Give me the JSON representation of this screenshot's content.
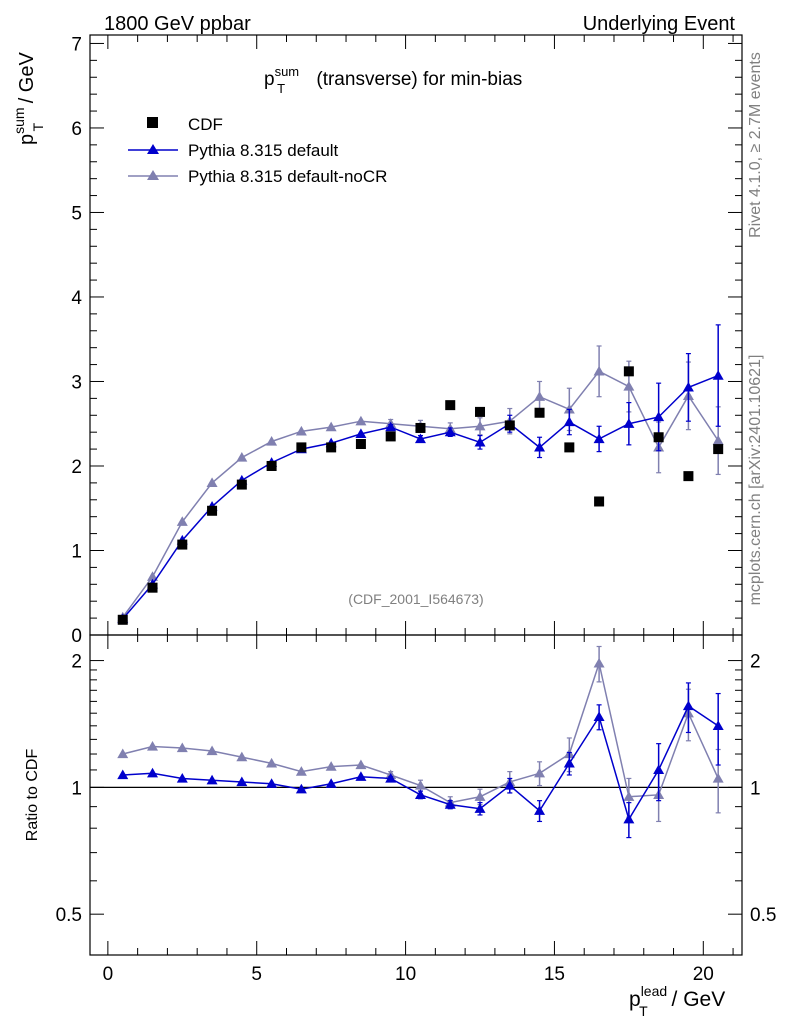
{
  "header": {
    "left": "1800 GeV ppbar",
    "right": "Underlying Event"
  },
  "side_texts": {
    "rivet": "Rivet 4.1.0, ≥ 2.7M events",
    "mcplots": "mcplots.cern.ch [arXiv:2401.10621]"
  },
  "chart_data": [
    {
      "type": "scatter",
      "panel": "main",
      "title": "p_T^sum (transverse) for min-bias",
      "title_parts": {
        "base": "p",
        "sub": "T",
        "sup": "sum",
        "rest": " (transverse) for min-bias"
      },
      "ylabel_parts": {
        "base": "p",
        "sub": "T",
        "sup": "sum",
        "rest": " / GeV"
      },
      "ylim": [
        0,
        7.1
      ],
      "xlim": [
        -0.6,
        21.3
      ],
      "yticks": [
        0,
        1,
        2,
        3,
        4,
        5,
        6,
        7
      ],
      "ytick_labels": [
        "0",
        "1",
        "2",
        "3",
        "4",
        "5",
        "6",
        "7"
      ],
      "watermark": "(CDF_2001_I564673)",
      "legend": [
        "CDF",
        "Pythia 8.315 default",
        "Pythia 8.315 default-noCR"
      ],
      "x": [
        0.5,
        1.5,
        2.5,
        3.5,
        4.5,
        5.5,
        6.5,
        7.5,
        8.5,
        9.5,
        10.5,
        11.5,
        12.5,
        13.5,
        14.5,
        15.5,
        16.5,
        17.5,
        18.5,
        19.5,
        20.5
      ],
      "series": [
        {
          "name": "CDF",
          "color": "#000000",
          "marker": "square",
          "values": [
            0.18,
            0.56,
            1.07,
            1.47,
            1.78,
            2.0,
            2.22,
            2.22,
            2.26,
            2.35,
            2.45,
            2.72,
            2.64,
            2.48,
            2.63,
            2.22,
            1.58,
            3.12,
            2.34,
            1.88,
            2.2
          ]
        },
        {
          "name": "Pythia 8.315 default",
          "color": "#0000cc",
          "marker": "triangle",
          "values": [
            0.19,
            0.6,
            1.12,
            1.52,
            1.83,
            2.04,
            2.2,
            2.27,
            2.38,
            2.46,
            2.32,
            2.4,
            2.28,
            2.5,
            2.22,
            2.52,
            2.32,
            2.5,
            2.58,
            2.93,
            3.07
          ],
          "errors": [
            0.0,
            0.0,
            0.0,
            0.0,
            0.0,
            0.0,
            0.0,
            0.0,
            0.0,
            0.03,
            0.04,
            0.05,
            0.08,
            0.1,
            0.12,
            0.15,
            0.15,
            0.25,
            0.4,
            0.4,
            0.6
          ]
        },
        {
          "name": "Pythia 8.315 default-noCR",
          "color": "#8080b0",
          "marker": "triangle",
          "values": [
            0.21,
            0.69,
            1.34,
            1.8,
            2.1,
            2.29,
            2.41,
            2.46,
            2.53,
            2.5,
            2.47,
            2.44,
            2.47,
            2.53,
            2.82,
            2.67,
            3.12,
            2.94,
            2.22,
            2.83,
            2.3
          ],
          "errors": [
            0.0,
            0.0,
            0.0,
            0.0,
            0.0,
            0.0,
            0.0,
            0.0,
            0.0,
            0.05,
            0.07,
            0.07,
            0.1,
            0.15,
            0.18,
            0.25,
            0.3,
            0.3,
            0.3,
            0.4,
            0.4
          ]
        }
      ]
    },
    {
      "type": "scatter",
      "panel": "ratio",
      "ylabel": "Ratio to CDF",
      "yscale": "log",
      "ylim": [
        0.4,
        2.3
      ],
      "xlim": [
        -0.6,
        21.3
      ],
      "yticks": [
        0.5,
        1,
        2
      ],
      "ytick_labels": [
        "0.5",
        "1",
        "2"
      ],
      "xticks": [
        0,
        5,
        10,
        15,
        20
      ],
      "xtick_labels": [
        "0",
        "5",
        "10",
        "15",
        "20"
      ],
      "xlabel_parts": {
        "base": "p",
        "sub": "T",
        "sup": "lead",
        "rest": " / GeV"
      },
      "reference_line": 1,
      "x": [
        0.5,
        1.5,
        2.5,
        3.5,
        4.5,
        5.5,
        6.5,
        7.5,
        8.5,
        9.5,
        10.5,
        11.5,
        12.5,
        13.5,
        14.5,
        15.5,
        16.5,
        17.5,
        18.5,
        19.5,
        20.5
      ],
      "series": [
        {
          "name": "Pythia 8.315 default",
          "color": "#0000cc",
          "values": [
            1.07,
            1.08,
            1.05,
            1.04,
            1.03,
            1.02,
            0.99,
            1.02,
            1.06,
            1.05,
            0.96,
            0.91,
            0.89,
            1.01,
            0.88,
            1.14,
            1.47,
            0.84,
            1.1,
            1.56,
            1.4
          ],
          "errors": [
            0.0,
            0.0,
            0.0,
            0.0,
            0.0,
            0.0,
            0.0,
            0.0,
            0.0,
            0.01,
            0.02,
            0.02,
            0.03,
            0.04,
            0.05,
            0.07,
            0.1,
            0.08,
            0.17,
            0.21,
            0.27
          ]
        },
        {
          "name": "Pythia 8.315 default-noCR",
          "color": "#8080b0",
          "values": [
            1.2,
            1.25,
            1.24,
            1.22,
            1.18,
            1.14,
            1.09,
            1.12,
            1.13,
            1.07,
            1.01,
            0.92,
            0.95,
            1.03,
            1.08,
            1.2,
            1.97,
            0.95,
            0.96,
            1.5,
            1.05
          ],
          "errors": [
            0.0,
            0.0,
            0.0,
            0.0,
            0.0,
            0.0,
            0.0,
            0.0,
            0.0,
            0.02,
            0.03,
            0.03,
            0.04,
            0.06,
            0.07,
            0.11,
            0.19,
            0.1,
            0.13,
            0.21,
            0.18
          ]
        }
      ]
    }
  ]
}
